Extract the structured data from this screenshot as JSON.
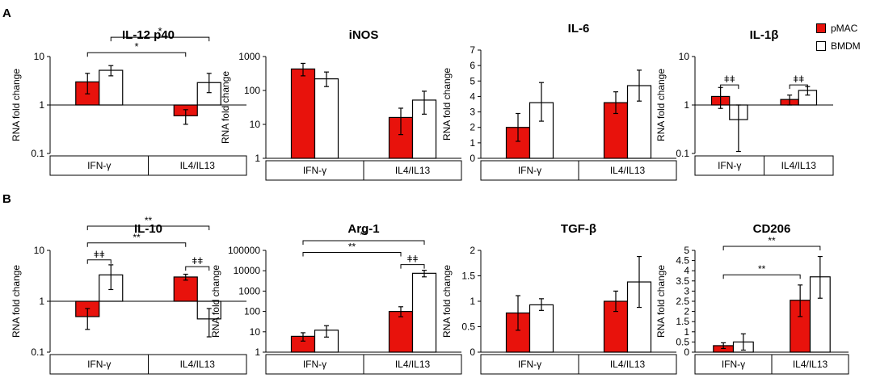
{
  "panel_labels": {
    "a": "A",
    "b": "B"
  },
  "legend": [
    {
      "name": "pMAC",
      "color": "#e8120c"
    },
    {
      "name": "BMDM",
      "color": "#ffffff"
    }
  ],
  "chart_data": [
    {
      "id": "il12",
      "type": "bar",
      "title": "IL-12 p40",
      "ylabel": "RNA fold change",
      "scale": "log",
      "ylim": [
        0.1,
        10
      ],
      "yticks": [
        0.1,
        1,
        10
      ],
      "ytick_labels": [
        "0.1",
        "1",
        "10"
      ],
      "baseline": 1,
      "categories": [
        "IFN-γ",
        "IL4/IL13"
      ],
      "series": [
        {
          "name": "pMAC",
          "values": [
            3.0,
            0.6
          ],
          "err_low": [
            1.7,
            0.4
          ],
          "err_high": [
            4.5,
            0.8
          ]
        },
        {
          "name": "BMDM",
          "values": [
            5.2,
            2.9
          ],
          "err_low": [
            4.0,
            1.8
          ],
          "err_high": [
            6.5,
            4.5
          ]
        }
      ],
      "annotations": [
        {
          "from": [
            0,
            1
          ],
          "to": [
            1,
            1
          ],
          "label": "*",
          "level": 25
        },
        {
          "from": [
            0,
            0
          ],
          "to": [
            1,
            0
          ],
          "label": "*",
          "level": 12
        }
      ]
    },
    {
      "id": "inos",
      "type": "bar",
      "title": "iNOS",
      "ylabel": "RNA fold change",
      "scale": "log",
      "ylim": [
        1,
        1000
      ],
      "yticks": [
        1,
        10,
        100,
        1000
      ],
      "ytick_labels": [
        "1",
        "10",
        "100",
        "1000"
      ],
      "baseline": 1,
      "categories": [
        "IFN-γ",
        "IL4/IL13"
      ],
      "series": [
        {
          "name": "pMAC",
          "values": [
            430,
            16
          ],
          "err_low": [
            270,
            5
          ],
          "err_high": [
            630,
            30
          ]
        },
        {
          "name": "BMDM",
          "values": [
            220,
            52
          ],
          "err_low": [
            130,
            20
          ],
          "err_high": [
            350,
            95
          ]
        }
      ],
      "annotations": []
    },
    {
      "id": "il6",
      "type": "bar",
      "title": "IL-6",
      "ylabel": "RNA fold change",
      "scale": "linear",
      "ylim": [
        0,
        7
      ],
      "yticks": [
        0,
        1,
        2,
        3,
        4,
        5,
        6,
        7
      ],
      "ytick_labels": [
        "0",
        "1",
        "2",
        "3",
        "4",
        "5",
        "6",
        "7"
      ],
      "baseline": 0,
      "categories": [
        "IFN-γ",
        "IL4/IL13"
      ],
      "series": [
        {
          "name": "pMAC",
          "values": [
            2.0,
            3.6
          ],
          "err_low": [
            1.1,
            2.9
          ],
          "err_high": [
            2.9,
            4.3
          ]
        },
        {
          "name": "BMDM",
          "values": [
            3.6,
            4.7
          ],
          "err_low": [
            2.4,
            3.7
          ],
          "err_high": [
            4.9,
            5.7
          ]
        }
      ],
      "annotations": []
    },
    {
      "id": "il1b",
      "type": "bar",
      "title": "IL-1β",
      "ylabel": "RNA fold change",
      "scale": "log",
      "ylim": [
        0.1,
        10
      ],
      "yticks": [
        0.1,
        1,
        10
      ],
      "ytick_labels": [
        "0.1",
        "1",
        "10"
      ],
      "baseline": 1,
      "categories": [
        "IFN-γ",
        "IL4/IL13"
      ],
      "series": [
        {
          "name": "pMAC",
          "values": [
            1.5,
            1.3
          ],
          "err_low": [
            0.85,
            1.0
          ],
          "err_high": [
            2.3,
            1.6
          ]
        },
        {
          "name": "BMDM",
          "values": [
            0.5,
            2.0
          ],
          "err_low": [
            0.11,
            1.6
          ],
          "err_high": [
            1.0,
            2.4
          ]
        }
      ],
      "annotations": [
        {
          "from": [
            0,
            0
          ],
          "to": [
            0,
            1
          ],
          "label": "ǂǂ",
          "level": 2.6
        },
        {
          "from": [
            1,
            0
          ],
          "to": [
            1,
            1
          ],
          "label": "ǂǂ",
          "level": 2.6
        }
      ]
    },
    {
      "id": "il10",
      "type": "bar",
      "title": "IL-10",
      "ylabel": "RNA fold change",
      "scale": "log",
      "ylim": [
        0.1,
        10
      ],
      "yticks": [
        0.1,
        1,
        10
      ],
      "ytick_labels": [
        "0.1",
        "1",
        "10"
      ],
      "baseline": 1,
      "categories": [
        "IFN-γ",
        "IL4/IL13"
      ],
      "series": [
        {
          "name": "pMAC",
          "values": [
            0.5,
            3.0
          ],
          "err_low": [
            0.28,
            2.6
          ],
          "err_high": [
            0.72,
            3.4
          ]
        },
        {
          "name": "BMDM",
          "values": [
            3.3,
            0.45
          ],
          "err_low": [
            1.7,
            0.2
          ],
          "err_high": [
            5.2,
            0.72
          ]
        }
      ],
      "annotations": [
        {
          "from": [
            0,
            0
          ],
          "to": [
            1,
            1
          ],
          "label": "**",
          "level": 30
        },
        {
          "from": [
            0,
            0
          ],
          "to": [
            1,
            0
          ],
          "label": "**",
          "level": 14
        },
        {
          "from": [
            0,
            0
          ],
          "to": [
            0,
            1
          ],
          "label": "ǂǂ",
          "level": 6.5
        },
        {
          "from": [
            1,
            0
          ],
          "to": [
            1,
            1
          ],
          "label": "ǂǂ",
          "level": 4.8
        }
      ]
    },
    {
      "id": "arg1",
      "type": "bar",
      "title": "Arg-1",
      "ylabel": "RNA fold change",
      "scale": "log",
      "ylim": [
        1,
        100000
      ],
      "yticks": [
        1,
        10,
        100,
        1000,
        10000,
        100000
      ],
      "ytick_labels": [
        "1",
        "10",
        "100",
        "1000",
        "10000",
        "100000"
      ],
      "baseline": 1,
      "categories": [
        "IFN-γ",
        "IL4/IL13"
      ],
      "series": [
        {
          "name": "pMAC",
          "values": [
            6,
            100
          ],
          "err_low": [
            3.5,
            55
          ],
          "err_high": [
            9,
            170
          ]
        },
        {
          "name": "BMDM",
          "values": [
            12,
            7500
          ],
          "err_low": [
            5.5,
            5000
          ],
          "err_high": [
            20,
            10500
          ]
        }
      ],
      "annotations": [
        {
          "from": [
            0,
            0
          ],
          "to": [
            1,
            1
          ],
          "label": "**",
          "level": 300000
        },
        {
          "from": [
            0,
            0
          ],
          "to": [
            1,
            0
          ],
          "label": "**",
          "level": 80000
        },
        {
          "from": [
            1,
            0
          ],
          "to": [
            1,
            1
          ],
          "label": "ǂǂ",
          "level": 20000
        }
      ]
    },
    {
      "id": "tgfb",
      "type": "bar",
      "title": "TGF-β",
      "ylabel": "RNA fold change",
      "scale": "linear",
      "ylim": [
        0,
        2
      ],
      "yticks": [
        0,
        0.5,
        1,
        1.5,
        2
      ],
      "ytick_labels": [
        "0",
        "0.5",
        "1",
        "1.5",
        "2"
      ],
      "baseline": 0,
      "categories": [
        "IFN-γ",
        "IL4/IL13"
      ],
      "series": [
        {
          "name": "pMAC",
          "values": [
            0.77,
            1.0
          ],
          "err_low": [
            0.43,
            0.8
          ],
          "err_high": [
            1.11,
            1.2
          ]
        },
        {
          "name": "BMDM",
          "values": [
            0.93,
            1.38
          ],
          "err_low": [
            0.82,
            0.88
          ],
          "err_high": [
            1.05,
            1.88
          ]
        }
      ],
      "annotations": []
    },
    {
      "id": "cd206",
      "type": "bar",
      "title": "CD206",
      "ylabel": "RNA fold change",
      "scale": "linear",
      "ylim": [
        0,
        5
      ],
      "yticks": [
        0,
        0.5,
        1,
        1.5,
        2,
        2.5,
        3,
        3.5,
        4,
        4.5,
        5
      ],
      "ytick_labels": [
        "0",
        "0.5",
        "1",
        "1.5",
        "2",
        "2.5",
        "3",
        "3.5",
        "4",
        "4.5",
        "5"
      ],
      "baseline": 0,
      "categories": [
        "IFN-γ",
        "IL4/IL13"
      ],
      "series": [
        {
          "name": "pMAC",
          "values": [
            0.32,
            2.55
          ],
          "err_low": [
            0.18,
            1.75
          ],
          "err_high": [
            0.46,
            3.3
          ]
        },
        {
          "name": "BMDM",
          "values": [
            0.5,
            3.7
          ],
          "err_low": [
            0.1,
            2.65
          ],
          "err_high": [
            0.9,
            4.7
          ]
        }
      ],
      "annotations": [
        {
          "from": [
            0,
            0
          ],
          "to": [
            1,
            1
          ],
          "label": "**",
          "level": 5.2
        },
        {
          "from": [
            0,
            0
          ],
          "to": [
            1,
            0
          ],
          "label": "**",
          "level": 3.8
        }
      ]
    }
  ]
}
